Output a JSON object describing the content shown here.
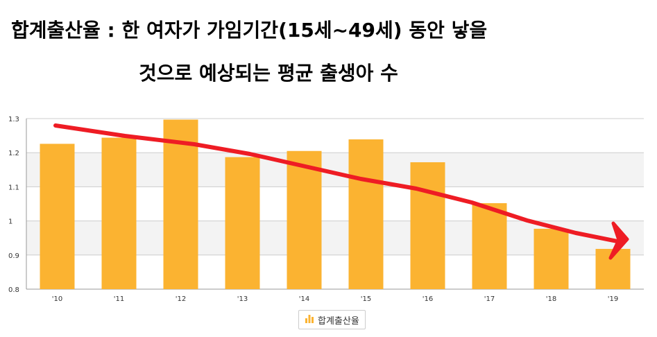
{
  "headline": {
    "line1": "합계출산율 : 한 여자가 가임기간(15세~49세) 동안 낳을",
    "line2": "것으로 예상되는 평균 출생아 수"
  },
  "chart_data": {
    "type": "bar",
    "categories": [
      "'10",
      "'11",
      "'12",
      "'13",
      "'14",
      "'15",
      "'16",
      "'17",
      "'18",
      "'19"
    ],
    "series": [
      {
        "name": "합계출산율",
        "values": [
          1.226,
          1.244,
          1.297,
          1.187,
          1.205,
          1.239,
          1.172,
          1.052,
          0.977,
          0.918
        ]
      }
    ],
    "ylim": [
      0.8,
      1.3
    ],
    "yticks": [
      "0.8",
      "0.9",
      "1",
      "1.1",
      "1.2",
      "1.3"
    ],
    "grid": true,
    "legend": "bottom",
    "annotation": "hand-drawn red downward trend arrow",
    "colors": {
      "bar": "#FBB331",
      "arrow": "#EE1C24",
      "band": "#F3F3F3",
      "grid": "#CCCCCC"
    }
  }
}
